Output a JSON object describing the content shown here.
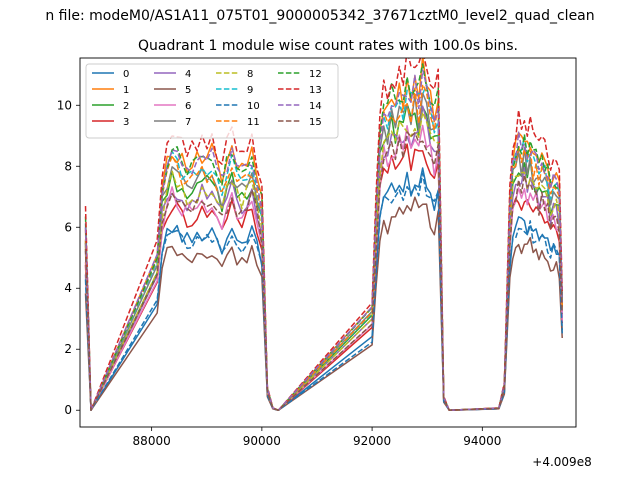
{
  "figure": {
    "suptitle": "n file: modeM0/AS1A11_075T01_9000005342_37671cztM0_level2_quad_clean",
    "title": "Quadrant 1 module wise count rates with 100.0s bins.",
    "offset_label": "+4.009e8"
  },
  "chart_data": {
    "type": "line",
    "title": "Quadrant 1 module wise count rates with 100.0s bins.",
    "xlabel": "",
    "ylabel": "",
    "x_offset": 400900000,
    "xlim": [
      86700,
      95700
    ],
    "ylim": [
      -0.55,
      11.55
    ],
    "xticks": [
      88000,
      90000,
      92000,
      94000
    ],
    "xtick_labels": [
      "88000",
      "90000",
      "92000",
      "94000"
    ],
    "yticks": [
      0,
      2,
      4,
      6,
      8,
      10
    ],
    "ytick_labels": [
      "0",
      "2",
      "4",
      "6",
      "8",
      "10"
    ],
    "grid": false,
    "legend": {
      "placement": "top-left",
      "columns": 4
    },
    "segments": [
      {
        "start": 86800,
        "end": 86900,
        "values": [
          4.3,
          0
        ]
      },
      {
        "start": 86900,
        "end": 88100,
        "values": [
          0,
          0
        ]
      },
      {
        "start": 88100,
        "end": 90000,
        "values": [
          3.6,
          5.2,
          5.8,
          6.0,
          5.9,
          5.7,
          5.6,
          5.6,
          5.7,
          5.8,
          5.8,
          5.9,
          5.6,
          5.3,
          5.7,
          5.9,
          5.6,
          5.5,
          5.7,
          5.9,
          5.4,
          4.8
        ]
      },
      {
        "start": 90000,
        "end": 90300,
        "values": [
          4.8,
          0.5,
          0.05,
          0
        ]
      },
      {
        "start": 90300,
        "end": 92000,
        "values": [
          0,
          0
        ]
      },
      {
        "start": 92000,
        "end": 93200,
        "values": [
          2.4,
          4.5,
          6.4,
          7.1,
          6.9,
          7.3,
          7.1,
          7.4,
          7.2,
          7.6,
          7.3,
          7.6,
          7.3,
          7.8,
          7.5,
          7.1,
          6.8,
          7.2
        ]
      },
      {
        "start": 93200,
        "end": 93400,
        "values": [
          7.2,
          0.3,
          0.02
        ]
      },
      {
        "start": 93400,
        "end": 94300,
        "values": [
          0,
          0
        ]
      },
      {
        "start": 94300,
        "end": 94500,
        "values": [
          0.05,
          0.6,
          4.8
        ]
      },
      {
        "start": 94500,
        "end": 95450,
        "values": [
          4.8,
          5.8,
          6.0,
          6.3,
          6.1,
          6.3,
          6.0,
          6.2,
          5.9,
          5.8,
          5.7,
          5.9,
          5.7,
          5.5,
          5.2,
          5.4,
          5.3,
          5.1,
          2.6
        ]
      }
    ],
    "series": [
      {
        "name": "0",
        "color": "#1f77b4",
        "dash": "solid",
        "scale": 1.0,
        "variation": 0.25
      },
      {
        "name": "1",
        "color": "#ff7f0e",
        "dash": "solid",
        "scale": 1.43,
        "variation": 0.35
      },
      {
        "name": "2",
        "color": "#2ca02c",
        "dash": "solid",
        "scale": 1.27,
        "variation": 0.35
      },
      {
        "name": "3",
        "color": "#d62728",
        "dash": "solid",
        "scale": 1.12,
        "variation": 0.3
      },
      {
        "name": "4",
        "color": "#9467bd",
        "dash": "solid",
        "scale": 1.22,
        "variation": 0.35
      },
      {
        "name": "5",
        "color": "#8c564b",
        "dash": "solid",
        "scale": 0.88,
        "variation": 0.25
      },
      {
        "name": "6",
        "color": "#e377c2",
        "dash": "solid",
        "scale": 1.17,
        "variation": 0.35
      },
      {
        "name": "7",
        "color": "#7f7f7f",
        "dash": "solid",
        "scale": 1.31,
        "variation": 0.35
      },
      {
        "name": "8",
        "color": "#bcbd22",
        "dash": "dashed",
        "scale": 1.25,
        "variation": 0.35
      },
      {
        "name": "9",
        "color": "#17becf",
        "dash": "dashed",
        "scale": 1.37,
        "variation": 0.35
      },
      {
        "name": "10",
        "color": "#1f77b4",
        "dash": "dashed",
        "scale": 0.97,
        "variation": 0.25
      },
      {
        "name": "11",
        "color": "#ff7f0e",
        "dash": "dashed",
        "scale": 1.34,
        "variation": 0.35
      },
      {
        "name": "12",
        "color": "#2ca02c",
        "dash": "dashed",
        "scale": 1.42,
        "variation": 0.35
      },
      {
        "name": "13",
        "color": "#d62728",
        "dash": "dashed",
        "scale": 1.52,
        "variation": 0.35
      },
      {
        "name": "14",
        "color": "#9467bd",
        "dash": "dashed",
        "scale": 1.4,
        "variation": 0.35
      },
      {
        "name": "15",
        "color": "#8c564b",
        "dash": "dashed",
        "scale": 1.18,
        "variation": 0.35
      }
    ]
  }
}
